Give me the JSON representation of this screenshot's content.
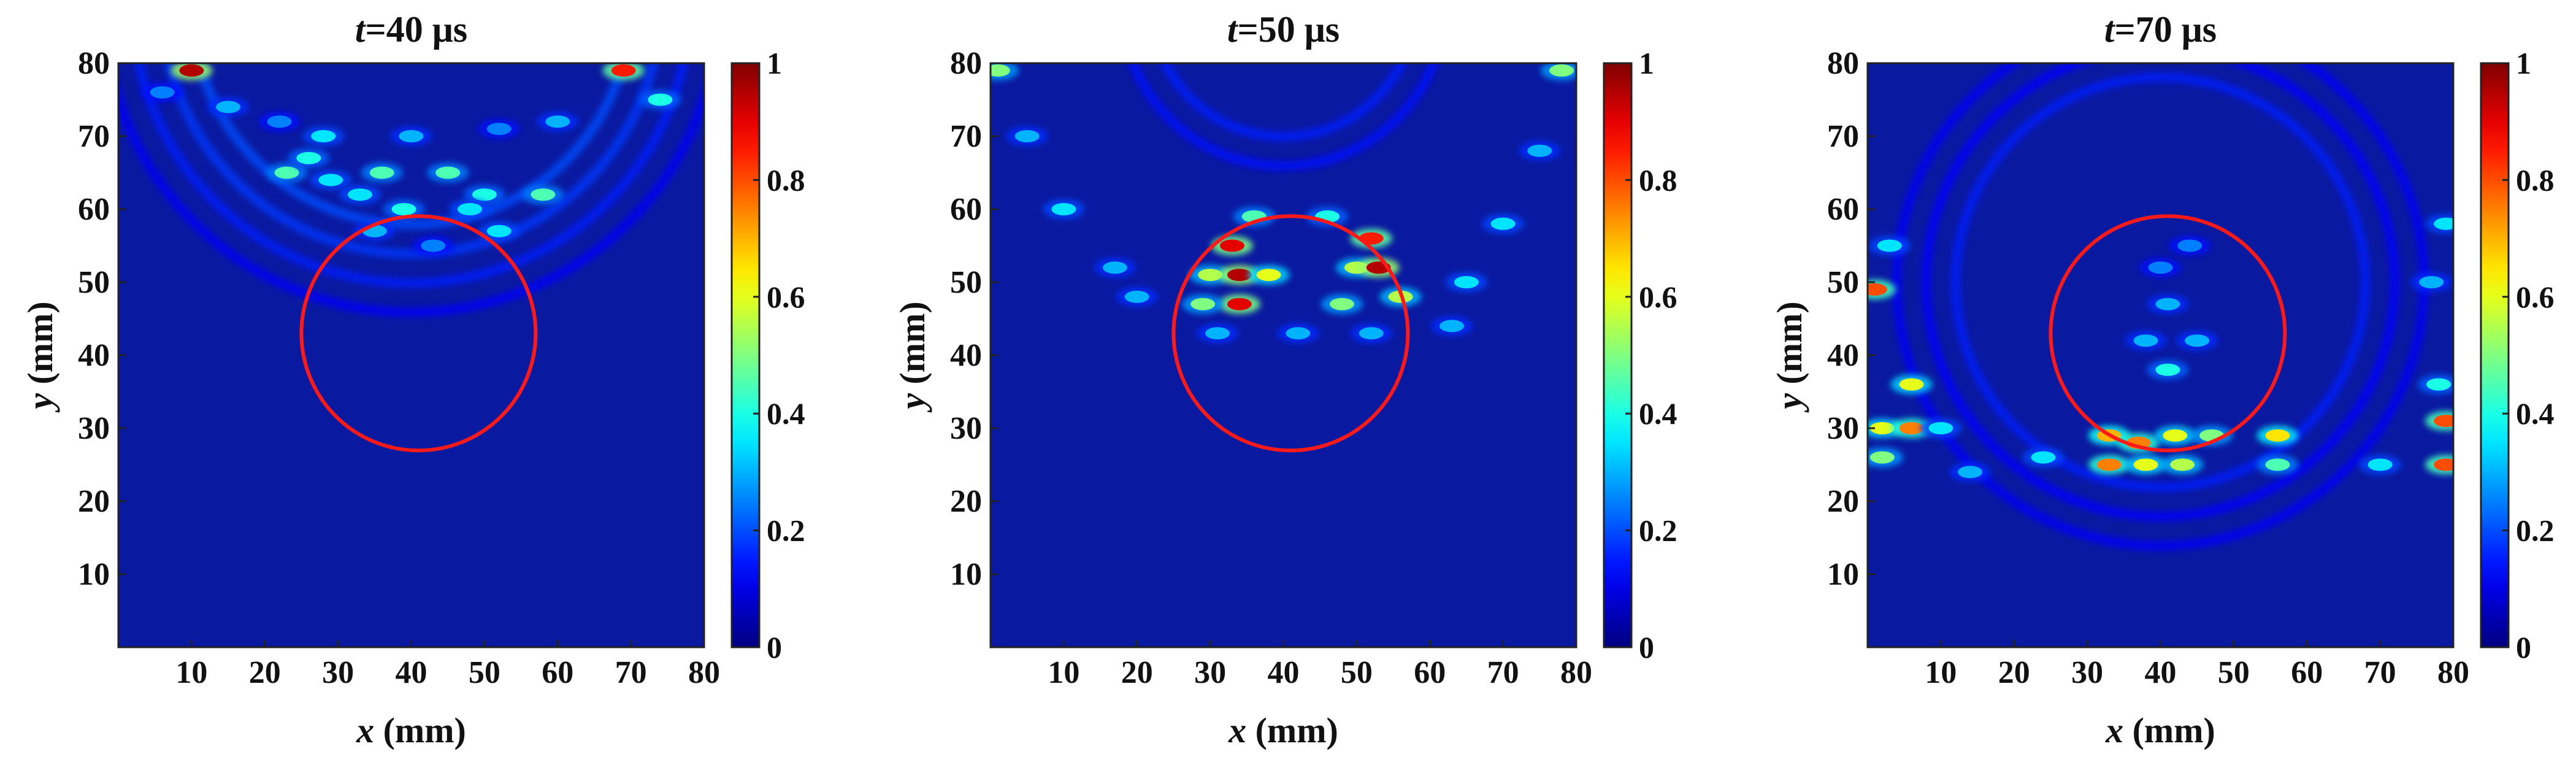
{
  "figure": {
    "colormap": "jet",
    "defect_color": "#ff1a1a",
    "background_color": "#0a1aa0"
  },
  "chart_data": [
    {
      "type": "heatmap",
      "title_var": "t",
      "title_rest": "=40 μs",
      "xlabel_var": "x",
      "xlabel_rest": " (mm)",
      "ylabel_var": "y",
      "ylabel_rest": " (mm)",
      "xlim": [
        0,
        80
      ],
      "ylim": [
        0,
        80
      ],
      "xticks": [
        10,
        20,
        30,
        40,
        50,
        60,
        70,
        80
      ],
      "yticks": [
        10,
        20,
        30,
        40,
        50,
        60,
        70,
        80
      ],
      "colorbar": {
        "range": [
          0,
          1
        ],
        "ticks": [
          0,
          0.2,
          0.4,
          0.6,
          0.8,
          1
        ],
        "tick_labels": [
          "0",
          "0.2",
          "0.4",
          "0.6",
          "0.8",
          "1"
        ]
      },
      "defect_circle": {
        "cx": 41,
        "cy": 43,
        "r": 16
      },
      "hotspots": [
        {
          "x": 10,
          "y": 79,
          "v": 0.95
        },
        {
          "x": 69,
          "y": 79,
          "v": 0.85
        },
        {
          "x": 6,
          "y": 76,
          "v": 0.25
        },
        {
          "x": 15,
          "y": 74,
          "v": 0.3
        },
        {
          "x": 22,
          "y": 72,
          "v": 0.25
        },
        {
          "x": 28,
          "y": 70,
          "v": 0.35
        },
        {
          "x": 40,
          "y": 70,
          "v": 0.3
        },
        {
          "x": 52,
          "y": 71,
          "v": 0.25
        },
        {
          "x": 60,
          "y": 72,
          "v": 0.3
        },
        {
          "x": 74,
          "y": 75,
          "v": 0.4
        },
        {
          "x": 23,
          "y": 65,
          "v": 0.45
        },
        {
          "x": 29,
          "y": 64,
          "v": 0.35
        },
        {
          "x": 33,
          "y": 62,
          "v": 0.35
        },
        {
          "x": 36,
          "y": 65,
          "v": 0.45
        },
        {
          "x": 45,
          "y": 65,
          "v": 0.45
        },
        {
          "x": 50,
          "y": 62,
          "v": 0.4
        },
        {
          "x": 58,
          "y": 62,
          "v": 0.45
        },
        {
          "x": 26,
          "y": 67,
          "v": 0.4
        },
        {
          "x": 39,
          "y": 60,
          "v": 0.4
        },
        {
          "x": 48,
          "y": 60,
          "v": 0.35
        },
        {
          "x": 35,
          "y": 57,
          "v": 0.3
        },
        {
          "x": 52,
          "y": 57,
          "v": 0.35
        },
        {
          "x": 43,
          "y": 55,
          "v": 0.25
        }
      ],
      "arcs": [
        {
          "cx": 40,
          "cy": 88,
          "r": 30,
          "v": 0.2
        },
        {
          "cx": 40,
          "cy": 88,
          "r": 34,
          "v": 0.18
        },
        {
          "cx": 40,
          "cy": 88,
          "r": 38,
          "v": 0.15
        },
        {
          "cx": 40,
          "cy": 88,
          "r": 42,
          "v": 0.12
        }
      ]
    },
    {
      "type": "heatmap",
      "title_var": "t",
      "title_rest": "=50 μs",
      "xlabel_var": "x",
      "xlabel_rest": " (mm)",
      "ylabel_var": "y",
      "ylabel_rest": " (mm)",
      "xlim": [
        0,
        80
      ],
      "ylim": [
        0,
        80
      ],
      "xticks": [
        10,
        20,
        30,
        40,
        50,
        60,
        70,
        80
      ],
      "yticks": [
        10,
        20,
        30,
        40,
        50,
        60,
        70,
        80
      ],
      "colorbar": {
        "range": [
          0,
          1
        ],
        "ticks": [
          0,
          0.2,
          0.4,
          0.6,
          0.8,
          1
        ],
        "tick_labels": [
          "0",
          "0.2",
          "0.4",
          "0.6",
          "0.8",
          "1"
        ]
      },
      "defect_circle": {
        "cx": 41,
        "cy": 43,
        "r": 16
      },
      "hotspots": [
        {
          "x": 1,
          "y": 79,
          "v": 0.5
        },
        {
          "x": 78,
          "y": 79,
          "v": 0.5
        },
        {
          "x": 33,
          "y": 55,
          "v": 0.9
        },
        {
          "x": 52,
          "y": 56,
          "v": 0.85
        },
        {
          "x": 30,
          "y": 51,
          "v": 0.55
        },
        {
          "x": 34,
          "y": 51,
          "v": 0.95
        },
        {
          "x": 38,
          "y": 51,
          "v": 0.6
        },
        {
          "x": 50,
          "y": 52,
          "v": 0.55
        },
        {
          "x": 53,
          "y": 52,
          "v": 0.95
        },
        {
          "x": 34,
          "y": 47,
          "v": 0.9
        },
        {
          "x": 29,
          "y": 47,
          "v": 0.5
        },
        {
          "x": 48,
          "y": 47,
          "v": 0.5
        },
        {
          "x": 56,
          "y": 48,
          "v": 0.55
        },
        {
          "x": 36,
          "y": 59,
          "v": 0.45
        },
        {
          "x": 46,
          "y": 59,
          "v": 0.4
        },
        {
          "x": 31,
          "y": 43,
          "v": 0.3
        },
        {
          "x": 42,
          "y": 43,
          "v": 0.3
        },
        {
          "x": 52,
          "y": 43,
          "v": 0.3
        },
        {
          "x": 5,
          "y": 70,
          "v": 0.3
        },
        {
          "x": 75,
          "y": 68,
          "v": 0.3
        },
        {
          "x": 10,
          "y": 60,
          "v": 0.35
        },
        {
          "x": 70,
          "y": 58,
          "v": 0.35
        },
        {
          "x": 65,
          "y": 50,
          "v": 0.35
        },
        {
          "x": 17,
          "y": 52,
          "v": 0.3
        },
        {
          "x": 63,
          "y": 44,
          "v": 0.3
        },
        {
          "x": 20,
          "y": 48,
          "v": 0.3
        }
      ],
      "arcs": [
        {
          "cx": 40,
          "cy": 88,
          "r": 18,
          "v": 0.15
        },
        {
          "cx": 40,
          "cy": 88,
          "r": 22,
          "v": 0.14
        }
      ]
    },
    {
      "type": "heatmap",
      "title_var": "t",
      "title_rest": "=70 μs",
      "xlabel_var": "x",
      "xlabel_rest": " (mm)",
      "ylabel_var": "y",
      "ylabel_rest": " (mm)",
      "xlim": [
        0,
        80
      ],
      "ylim": [
        0,
        80
      ],
      "xticks": [
        10,
        20,
        30,
        40,
        50,
        60,
        70,
        80
      ],
      "yticks": [
        10,
        20,
        30,
        40,
        50,
        60,
        70,
        80
      ],
      "colorbar": {
        "range": [
          0,
          1
        ],
        "ticks": [
          0,
          0.2,
          0.4,
          0.6,
          0.8,
          1
        ],
        "tick_labels": [
          "0",
          "0.2",
          "0.4",
          "0.6",
          "0.8",
          "1"
        ]
      },
      "defect_circle": {
        "cx": 41,
        "cy": 43,
        "r": 16
      },
      "hotspots": [
        {
          "x": 1,
          "y": 49,
          "v": 0.8
        },
        {
          "x": 6,
          "y": 36,
          "v": 0.6
        },
        {
          "x": 2,
          "y": 30,
          "v": 0.6
        },
        {
          "x": 6,
          "y": 30,
          "v": 0.75
        },
        {
          "x": 2,
          "y": 26,
          "v": 0.5
        },
        {
          "x": 33,
          "y": 29,
          "v": 0.7
        },
        {
          "x": 37,
          "y": 28,
          "v": 0.75
        },
        {
          "x": 42,
          "y": 29,
          "v": 0.6
        },
        {
          "x": 47,
          "y": 29,
          "v": 0.5
        },
        {
          "x": 33,
          "y": 25,
          "v": 0.75
        },
        {
          "x": 38,
          "y": 25,
          "v": 0.6
        },
        {
          "x": 43,
          "y": 25,
          "v": 0.55
        },
        {
          "x": 56,
          "y": 29,
          "v": 0.65
        },
        {
          "x": 56,
          "y": 25,
          "v": 0.45
        },
        {
          "x": 79,
          "y": 31,
          "v": 0.8
        },
        {
          "x": 79,
          "y": 25,
          "v": 0.8
        },
        {
          "x": 78,
          "y": 36,
          "v": 0.4
        },
        {
          "x": 41,
          "y": 38,
          "v": 0.4
        },
        {
          "x": 38,
          "y": 42,
          "v": 0.3
        },
        {
          "x": 45,
          "y": 42,
          "v": 0.3
        },
        {
          "x": 41,
          "y": 47,
          "v": 0.3
        },
        {
          "x": 40,
          "y": 52,
          "v": 0.25
        },
        {
          "x": 44,
          "y": 55,
          "v": 0.25
        },
        {
          "x": 10,
          "y": 30,
          "v": 0.35
        },
        {
          "x": 14,
          "y": 24,
          "v": 0.3
        },
        {
          "x": 24,
          "y": 26,
          "v": 0.35
        },
        {
          "x": 70,
          "y": 25,
          "v": 0.35
        },
        {
          "x": 79,
          "y": 58,
          "v": 0.35
        },
        {
          "x": 3,
          "y": 55,
          "v": 0.35
        },
        {
          "x": 77,
          "y": 50,
          "v": 0.3
        }
      ],
      "arcs": [
        {
          "cx": 40,
          "cy": 50,
          "r": 28,
          "v": 0.15
        },
        {
          "cx": 40,
          "cy": 50,
          "r": 32,
          "v": 0.13
        },
        {
          "cx": 40,
          "cy": 50,
          "r": 36,
          "v": 0.12
        }
      ]
    }
  ]
}
